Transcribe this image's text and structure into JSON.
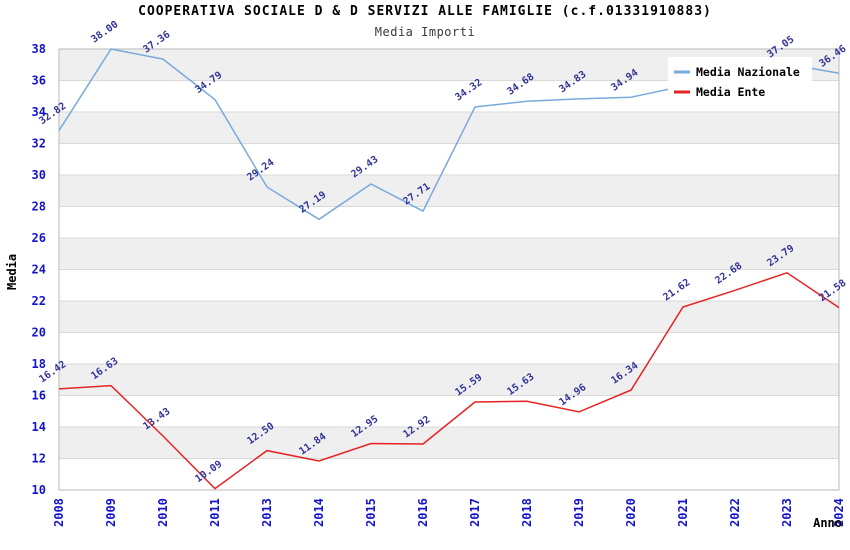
{
  "chart_data": {
    "type": "line",
    "title": "COOPERATIVA SOCIALE D & D SERVIZI ALLE FAMIGLIE (c.f.01331910883)",
    "subtitle": "Media Importi",
    "xlabel": "Anno",
    "ylabel": "Media",
    "categories": [
      "2008",
      "2009",
      "2010",
      "2011",
      "2013",
      "2014",
      "2015",
      "2016",
      "2017",
      "2018",
      "2019",
      "2020",
      "2021",
      "2022",
      "2023",
      "2024"
    ],
    "series": [
      {
        "name": "Media Nazionale",
        "color": "#78aadc",
        "values": [
          32.82,
          38.0,
          37.36,
          34.79,
          29.24,
          27.19,
          29.43,
          27.71,
          34.32,
          34.68,
          34.83,
          34.94,
          null,
          null,
          37.05,
          36.46
        ]
      },
      {
        "name": "Media Ente",
        "color": "#e62222",
        "values": [
          16.42,
          16.63,
          13.43,
          10.09,
          12.5,
          11.84,
          12.95,
          12.92,
          15.59,
          15.63,
          14.96,
          16.34,
          21.62,
          22.68,
          23.79,
          21.58
        ]
      }
    ],
    "ylim": [
      10,
      38
    ],
    "ytick_step": 2,
    "grid": true,
    "legend_position": "top-right",
    "value_label_decimals": 2,
    "colors": {
      "band": "#efefef",
      "gridline": "#d9d9d9",
      "plot_border": "#b8b8b8",
      "tick_label": "#1414cc",
      "value_label": "#333399",
      "axis_title": "#000000",
      "legend_bg": "#ffffff",
      "legend_text": "#000000"
    }
  }
}
